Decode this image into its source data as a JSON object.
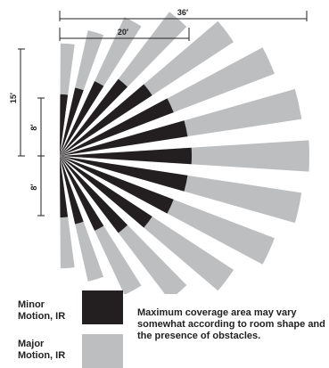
{
  "dimensions": {
    "total_length": "36′",
    "minor_length": "20′",
    "total_height": "15′",
    "upper_minor_height": "8′",
    "lower_minor_height": "8′"
  },
  "legend": {
    "minor": {
      "label_line1": "Minor",
      "label_line2": "Motion, IR",
      "color": "#231f20"
    },
    "major": {
      "label_line1": "Major",
      "label_line2": "Motion, IR",
      "color": "#bcbec0"
    }
  },
  "note": "Maximum coverage area may vary somewhat according to room shape and the presence of obstacles."
}
